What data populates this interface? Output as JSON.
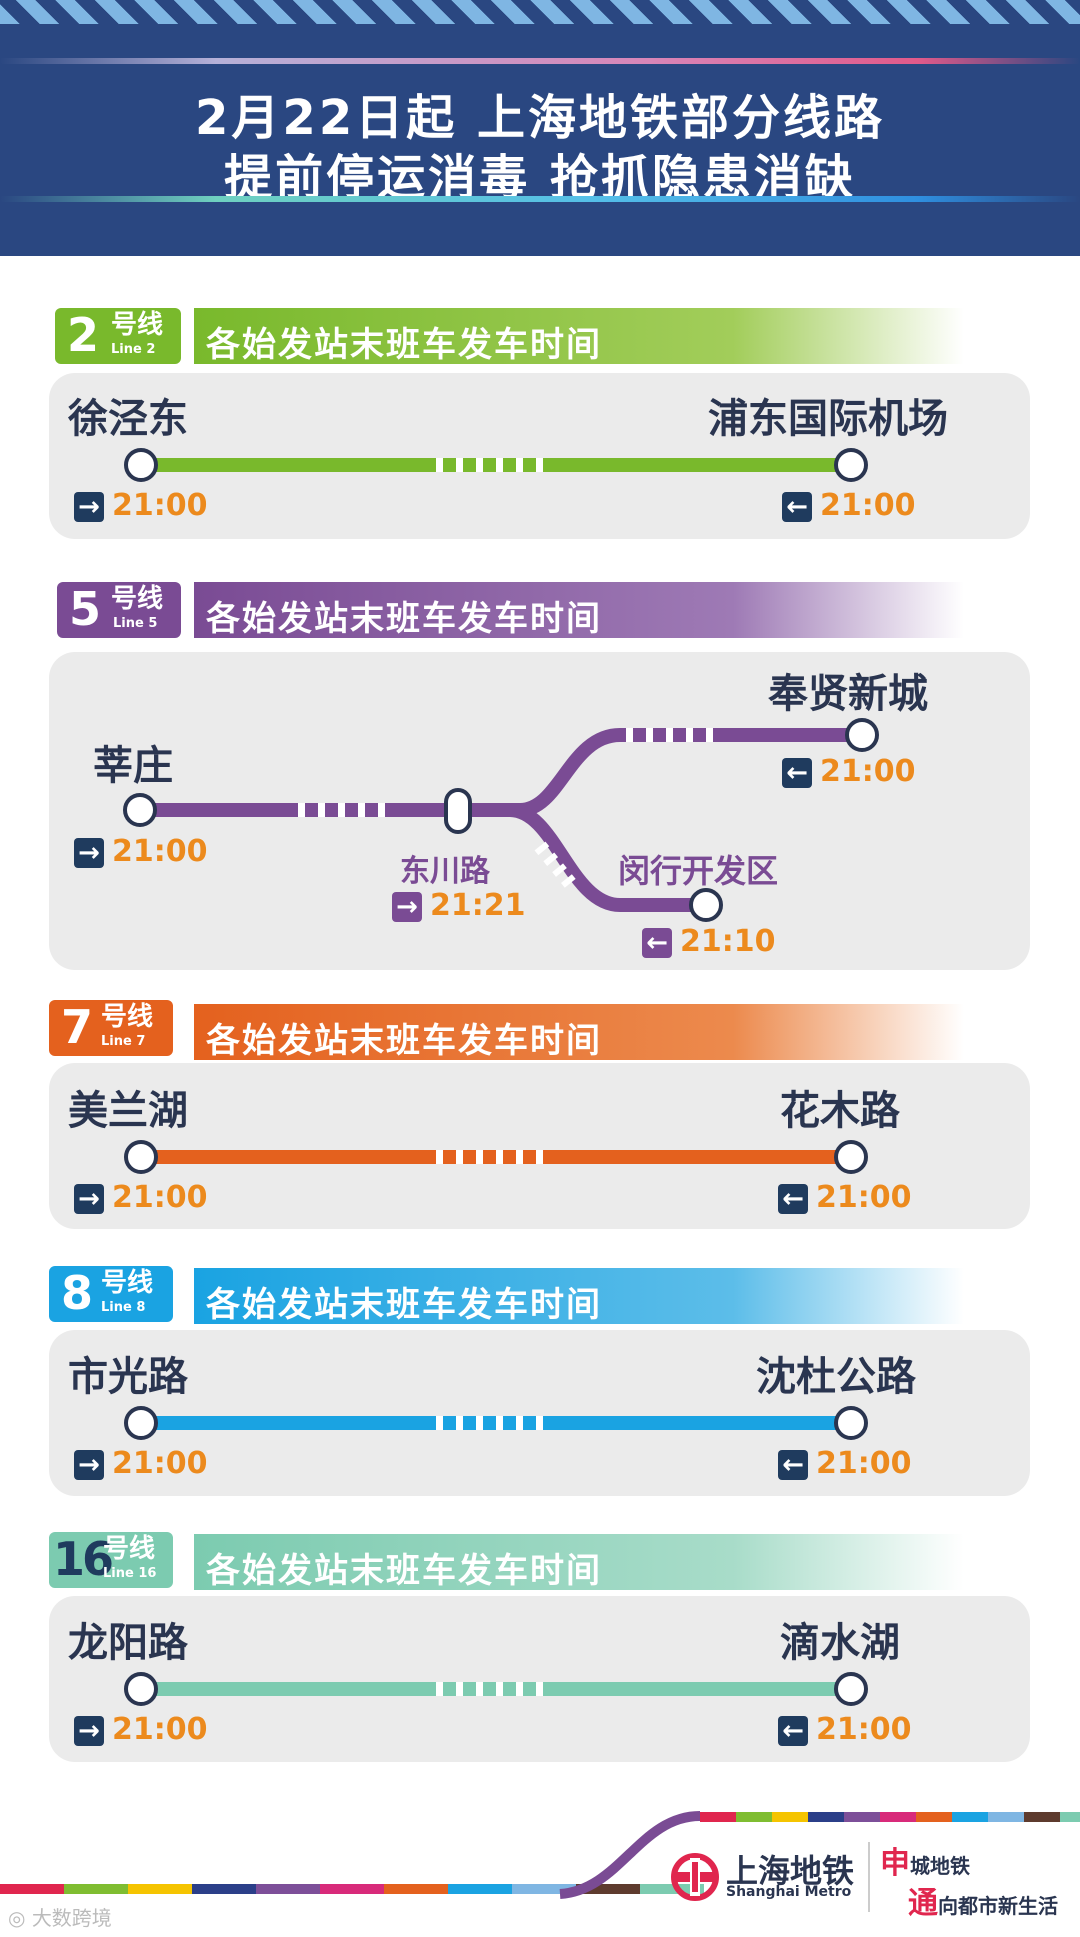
{
  "header": {
    "title_line1": "2月22日起 上海地铁部分线路",
    "title_line2": "提前停运消毒 抢抓隐患消缺"
  },
  "banner_text": "各始发站末班车发车时间",
  "lines": [
    {
      "num": "2",
      "hx": "号线",
      "en": "Line 2",
      "color": "#79b92c",
      "start": {
        "name": "徐泾东",
        "time": "21:00",
        "arrow": "→"
      },
      "end": {
        "name": "浦东国际机场",
        "time": "21:00",
        "arrow": "←"
      }
    },
    {
      "num": "5",
      "hx": "号线",
      "en": "Line 5",
      "color": "#7a4b94",
      "start": {
        "name": "莘庄",
        "time": "21:00",
        "arrow": "→"
      },
      "mid": {
        "name": "东川路",
        "time": "21:21",
        "arrow": "→"
      },
      "branch1": {
        "name": "奉贤新城",
        "time": "21:00",
        "arrow": "←"
      },
      "branch2": {
        "name": "闵行开发区",
        "time": "21:10",
        "arrow": "←"
      }
    },
    {
      "num": "7",
      "hx": "号线",
      "en": "Line 7",
      "color": "#e4611e",
      "start": {
        "name": "美兰湖",
        "time": "21:00",
        "arrow": "→"
      },
      "end": {
        "name": "花木路",
        "time": "21:00",
        "arrow": "←"
      }
    },
    {
      "num": "8",
      "hx": "号线",
      "en": "Line 8",
      "color": "#1aa3e2",
      "start": {
        "name": "市光路",
        "time": "21:00",
        "arrow": "→"
      },
      "end": {
        "name": "沈杜公路",
        "time": "21:00",
        "arrow": "←"
      }
    },
    {
      "num": "16",
      "hx": "号线",
      "en": "Line 16",
      "color": "#7ccbb0",
      "start": {
        "name": "龙阳路",
        "time": "21:00",
        "arrow": "→"
      },
      "end": {
        "name": "滴水湖",
        "time": "21:00",
        "arrow": "←"
      }
    }
  ],
  "footer": {
    "logo_cn": "上海地铁",
    "logo_en": "Shanghai Metro",
    "slogan1_big": "申",
    "slogan1_rest": "城地铁",
    "slogan2_big": "通",
    "slogan2_rest": "向都市新生活",
    "watermark": "大数跨境"
  },
  "footer_stripe_colors": [
    "#e0264e",
    "#7fbd31",
    "#f5c400",
    "#2b3f89",
    "#7d4f99",
    "#d82a7a",
    "#e4611e",
    "#1aa3e2",
    "#7fb6e3",
    "#5e3b2e",
    "#7ccbb0"
  ]
}
